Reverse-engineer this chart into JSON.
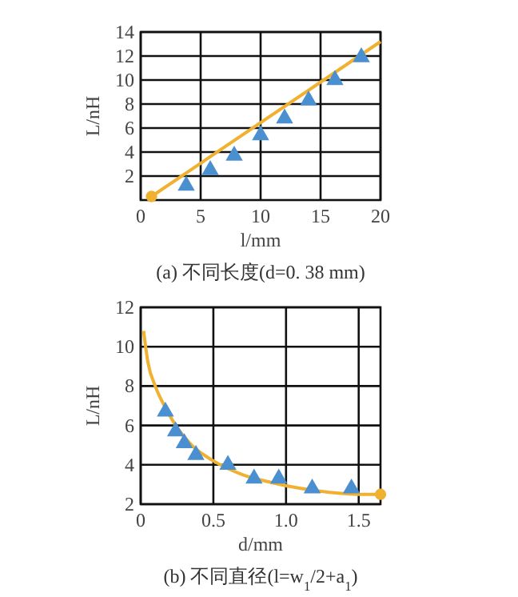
{
  "chart_data": [
    {
      "type": "scatter",
      "title": "(a) 不同长度(d=0. 38 mm)",
      "xlabel": "l/mm",
      "ylabel": "L/nH",
      "xlim": [
        0,
        20
      ],
      "xticks": [
        0,
        5,
        10,
        15,
        20
      ],
      "ylim": [
        0,
        14
      ],
      "yticks": [
        2,
        4,
        6,
        8,
        10,
        12,
        14
      ],
      "grid": true,
      "series": [
        {
          "type": "line",
          "color": "#f0b030",
          "marker": "none",
          "x": [
            0.9,
            20
          ],
          "values": [
            0.3,
            13.2
          ]
        },
        {
          "color": "#f0b030",
          "marker": "circle",
          "x": [
            0.9
          ],
          "values": [
            0.3
          ]
        },
        {
          "color": "#4a8fd0",
          "marker": "triangle",
          "x": [
            3.8,
            5.8,
            7.8,
            10,
            12,
            14,
            16.2,
            18.4
          ],
          "values": [
            1.2,
            2.5,
            3.7,
            5.4,
            6.8,
            8.3,
            10,
            11.9
          ]
        }
      ]
    },
    {
      "type": "scatter",
      "title": "(b) 不同直径(l=w$_{1}$/2+a$_{1}$)",
      "xlabel": "d/mm",
      "ylabel": "L/nH",
      "xlim": [
        0,
        1.65
      ],
      "xticks": [
        0,
        0.5,
        {
          "value": 1,
          "label": "1.0"
        },
        1.5
      ],
      "ylim": [
        2,
        12
      ],
      "yticks": [
        2,
        4,
        6,
        8,
        10,
        12
      ],
      "grid": true,
      "series": [
        {
          "type": "line",
          "color": "#f0b030",
          "marker": "none",
          "x": [
            0.02,
            0.05,
            0.1,
            0.17,
            0.25,
            0.35,
            0.5,
            0.7,
            0.9,
            1.1,
            1.3,
            1.5,
            1.65
          ],
          "values": [
            10.8,
            9.2,
            8.0,
            6.9,
            5.9,
            5.0,
            4.2,
            3.5,
            3.1,
            2.8,
            2.6,
            2.5,
            2.5
          ]
        },
        {
          "color": "#f0b030",
          "marker": "circle",
          "x": [
            1.65
          ],
          "values": [
            2.5
          ]
        },
        {
          "color": "#4a8fd0",
          "marker": "triangle",
          "x": [
            0.17,
            0.24,
            0.3,
            0.38,
            0.6,
            0.78,
            0.95,
            1.18,
            1.45
          ],
          "values": [
            6.7,
            5.7,
            5.1,
            4.5,
            4.0,
            3.3,
            3.3,
            2.8,
            2.8
          ]
        }
      ]
    }
  ]
}
